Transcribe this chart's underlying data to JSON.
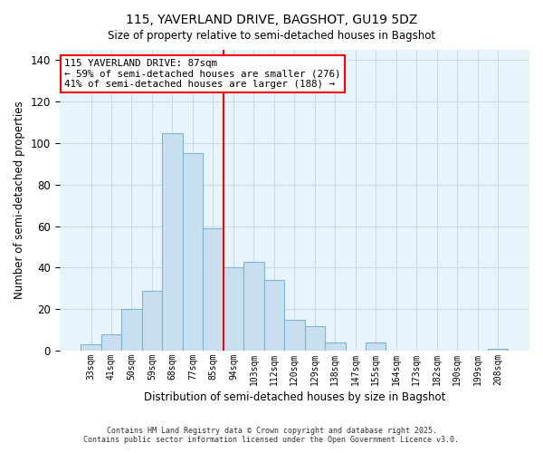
{
  "title": "115, YAVERLAND DRIVE, BAGSHOT, GU19 5DZ",
  "subtitle": "Size of property relative to semi-detached houses in Bagshot",
  "xlabel": "Distribution of semi-detached houses by size in Bagshot",
  "ylabel": "Number of semi-detached properties",
  "bar_labels": [
    "33sqm",
    "41sqm",
    "50sqm",
    "59sqm",
    "68sqm",
    "77sqm",
    "85sqm",
    "94sqm",
    "103sqm",
    "112sqm",
    "120sqm",
    "129sqm",
    "138sqm",
    "147sqm",
    "155sqm",
    "164sqm",
    "173sqm",
    "182sqm",
    "190sqm",
    "199sqm",
    "208sqm"
  ],
  "bar_values": [
    3,
    8,
    20,
    29,
    105,
    95,
    59,
    40,
    43,
    34,
    15,
    12,
    4,
    0,
    4,
    0,
    0,
    0,
    0,
    0,
    1
  ],
  "bar_color": "#c8dff0",
  "bar_edge_color": "#7fb3d3",
  "vline_x_index": 6,
  "vline_color": "red",
  "annotation_title": "115 YAVERLAND DRIVE: 87sqm",
  "annotation_line1": "← 59% of semi-detached houses are smaller (276)",
  "annotation_line2": "41% of semi-detached houses are larger (188) →",
  "annotation_box_color": "#ffffff",
  "annotation_box_edge": "red",
  "ylim": [
    0,
    145
  ],
  "yticks": [
    0,
    20,
    40,
    60,
    80,
    100,
    120,
    140
  ],
  "footer1": "Contains HM Land Registry data © Crown copyright and database right 2025.",
  "footer2": "Contains public sector information licensed under the Open Government Licence v3.0.",
  "background_color": "#ffffff",
  "plot_bg_color": "#e8f4fb",
  "grid_color": "#c8dce8"
}
